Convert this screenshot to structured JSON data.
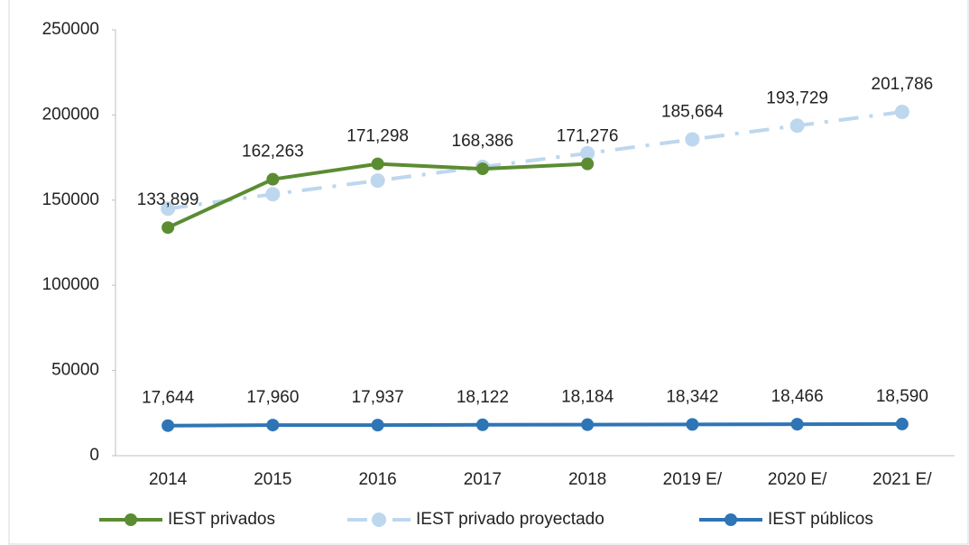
{
  "chart_data": {
    "type": "line",
    "categories": [
      "2014",
      "2015",
      "2016",
      "2017",
      "2018",
      "2019 E/",
      "2020 E/",
      "2021 E/"
    ],
    "series": [
      {
        "name": "IEST privados",
        "color": "#5b8c32",
        "dash": "solid",
        "values": [
          133899,
          162263,
          171298,
          168386,
          171276,
          null,
          null,
          null
        ],
        "value_labels": [
          "133,899",
          "162,263",
          "171,298",
          "168,386",
          "171,276",
          null,
          null,
          null
        ]
      },
      {
        "name": "IEST privado proyectado",
        "color": "#bdd7ee",
        "dash": "dashdot",
        "values": [
          145000,
          153500,
          161500,
          169500,
          177500,
          185664,
          193729,
          201786
        ],
        "value_labels": [
          null,
          null,
          null,
          null,
          null,
          "185,664",
          "193,729",
          "201,786"
        ]
      },
      {
        "name": "IEST públicos",
        "color": "#2e75b6",
        "dash": "solid",
        "values": [
          17644,
          17960,
          17937,
          18122,
          18184,
          18342,
          18466,
          18590
        ],
        "value_labels": [
          "17,644",
          "17,960",
          "17,937",
          "18,122",
          "18,184",
          "18,342",
          "18,466",
          "18,590"
        ]
      }
    ],
    "ylim": [
      0,
      250000
    ],
    "yticks": [
      0,
      50000,
      100000,
      150000,
      200000,
      250000
    ],
    "grid": false,
    "legend": "bottom"
  }
}
